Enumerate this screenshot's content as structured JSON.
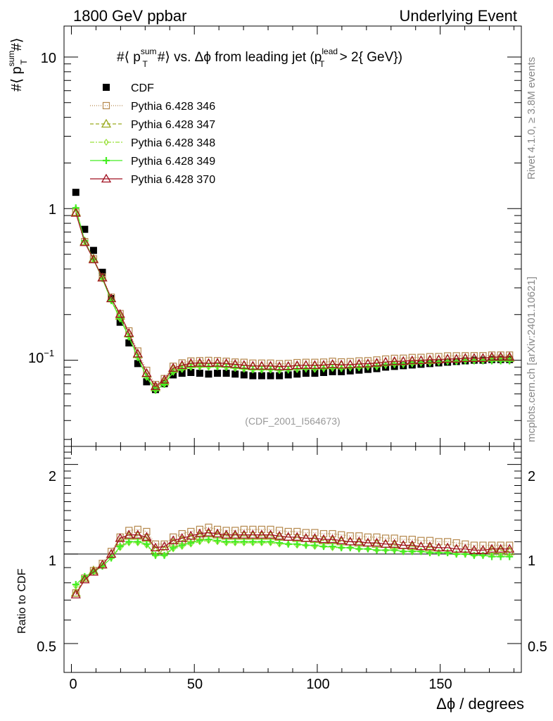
{
  "header": {
    "left": "1800 GeV ppbar",
    "right": "Underlying Event"
  },
  "side": {
    "rivet": "Rivet 4.1.0, ≥ 3.8M events",
    "mcplots": "mcplots.cern.ch [arXiv:2401.10621]"
  },
  "main_plot": {
    "title_prefix": "#⟨ p",
    "title_sup": "sum",
    "title_sub": "T",
    "title_mid": "#⟩ vs. Δϕ from leading jet  (p",
    "title_sup2": "lead",
    "title_sub2": "T",
    "title_suffix": " > 2{ GeV})",
    "ylabel_prefix": "#⟨ p",
    "ylabel_sup": "sum",
    "ylabel_sub": "T",
    "ylabel_suffix": "#⟩",
    "analysis_id": "(CDF_2001_I564673)",
    "y_tick_labels": [
      "10",
      "1",
      "10"
    ],
    "y_tick_exp": "−1"
  },
  "ratio_plot": {
    "ylabel": "Ratio to CDF",
    "tick_labels_left": [
      "2",
      "1",
      "0.5"
    ],
    "tick_labels_right": [
      "2",
      "1",
      "0.5"
    ]
  },
  "x_axis": {
    "label": "Δϕ / degrees",
    "tick_labels": [
      "0",
      "50",
      "100",
      "150"
    ]
  },
  "legend": [
    {
      "name": "CDF"
    },
    {
      "name": "Pythia 6.428 346"
    },
    {
      "name": "Pythia 6.428 347"
    },
    {
      "name": "Pythia 6.428 348"
    },
    {
      "name": "Pythia 6.428 349"
    },
    {
      "name": "Pythia 6.428 370"
    }
  ],
  "chart_data": {
    "type": "scatter",
    "title": "#⟨ p_T^sum #⟩ vs. Δϕ from leading jet (p_T^lead > 2 GeV)",
    "xlabel": "Δϕ / degrees",
    "ylabel": "#⟨ p_T^sum #⟩",
    "xlim": [
      -3,
      183
    ],
    "ylim": [
      0.027,
      16
    ],
    "yscale": "log",
    "ratio_ylim": [
      0.4,
      2.3
    ],
    "x": [
      1.8,
      5.4,
      9,
      12.6,
      16.2,
      19.8,
      23.4,
      27,
      30.6,
      34.2,
      37.8,
      41.4,
      45,
      48.6,
      52.2,
      55.8,
      59.4,
      63,
      66.6,
      70.2,
      73.8,
      77.4,
      81,
      84.6,
      88.2,
      91.8,
      95.4,
      99,
      102.6,
      106.2,
      109.8,
      113.4,
      117,
      120.6,
      124.2,
      127.8,
      131.4,
      135,
      138.6,
      142.2,
      145.8,
      149.4,
      153,
      156.6,
      160.2,
      163.8,
      167.4,
      171,
      174.6,
      178.2
    ],
    "series": [
      {
        "name": "CDF",
        "color": "#000000",
        "values": [
          1.28,
          0.73,
          0.53,
          0.38,
          0.255,
          0.178,
          0.13,
          0.095,
          0.072,
          0.064,
          0.07,
          0.08,
          0.082,
          0.083,
          0.082,
          0.081,
          0.082,
          0.082,
          0.081,
          0.08,
          0.079,
          0.079,
          0.079,
          0.079,
          0.08,
          0.081,
          0.082,
          0.082,
          0.083,
          0.084,
          0.084,
          0.085,
          0.086,
          0.087,
          0.088,
          0.09,
          0.091,
          0.092,
          0.093,
          0.094,
          0.095,
          0.096,
          0.097,
          0.098,
          0.099,
          0.1,
          0.1,
          0.101,
          0.101,
          0.101
        ]
      },
      {
        "name": "Pythia 6.428 346",
        "color": "#b5884c",
        "ratio": [
          0.74,
          0.83,
          0.88,
          0.93,
          1.02,
          1.14,
          1.2,
          1.21,
          1.19,
          1.08,
          1.08,
          1.14,
          1.17,
          1.19,
          1.21,
          1.23,
          1.21,
          1.2,
          1.2,
          1.21,
          1.21,
          1.21,
          1.21,
          1.2,
          1.19,
          1.19,
          1.18,
          1.18,
          1.17,
          1.17,
          1.16,
          1.15,
          1.15,
          1.14,
          1.14,
          1.13,
          1.13,
          1.12,
          1.12,
          1.11,
          1.11,
          1.1,
          1.1,
          1.09,
          1.08,
          1.07,
          1.07,
          1.07,
          1.07,
          1.07
        ]
      },
      {
        "name": "Pythia 6.428 347",
        "color": "#9aaa1e",
        "ratio": [
          0.74,
          0.83,
          0.88,
          0.92,
          1.0,
          1.1,
          1.15,
          1.15,
          1.13,
          1.03,
          1.03,
          1.09,
          1.11,
          1.13,
          1.15,
          1.17,
          1.16,
          1.15,
          1.15,
          1.15,
          1.15,
          1.15,
          1.15,
          1.14,
          1.14,
          1.13,
          1.13,
          1.12,
          1.11,
          1.11,
          1.1,
          1.1,
          1.09,
          1.09,
          1.08,
          1.08,
          1.07,
          1.07,
          1.06,
          1.06,
          1.05,
          1.05,
          1.05,
          1.04,
          1.04,
          1.03,
          1.03,
          1.03,
          1.03,
          1.02
        ]
      },
      {
        "name": "Pythia 6.428 348",
        "color": "#9ae03c",
        "ratio": [
          0.78,
          0.83,
          0.87,
          0.91,
          0.97,
          1.05,
          1.09,
          1.09,
          1.07,
          0.99,
          0.99,
          1.04,
          1.06,
          1.08,
          1.1,
          1.11,
          1.1,
          1.09,
          1.09,
          1.09,
          1.09,
          1.09,
          1.09,
          1.08,
          1.08,
          1.07,
          1.07,
          1.06,
          1.06,
          1.05,
          1.05,
          1.05,
          1.04,
          1.04,
          1.03,
          1.03,
          1.03,
          1.02,
          1.02,
          1.02,
          1.01,
          1.01,
          1.01,
          1.0,
          1.0,
          0.99,
          0.99,
          0.99,
          0.99,
          0.99
        ]
      },
      {
        "name": "Pythia 6.428 349",
        "color": "#44ee22",
        "ratio": [
          0.79,
          0.84,
          0.87,
          0.91,
          0.97,
          1.06,
          1.1,
          1.1,
          1.08,
          0.99,
          0.99,
          1.05,
          1.07,
          1.09,
          1.11,
          1.12,
          1.11,
          1.1,
          1.1,
          1.1,
          1.1,
          1.1,
          1.1,
          1.09,
          1.08,
          1.08,
          1.07,
          1.07,
          1.06,
          1.06,
          1.05,
          1.05,
          1.04,
          1.04,
          1.03,
          1.03,
          1.03,
          1.02,
          1.02,
          1.02,
          1.01,
          1.01,
          1.01,
          1.0,
          1.0,
          0.99,
          0.99,
          0.98,
          0.98,
          0.98
        ]
      },
      {
        "name": "Pythia 6.428 370",
        "color": "#a11020",
        "ratio": [
          0.73,
          0.82,
          0.87,
          0.92,
          1.0,
          1.13,
          1.16,
          1.16,
          1.14,
          1.05,
          1.06,
          1.11,
          1.13,
          1.15,
          1.17,
          1.18,
          1.17,
          1.16,
          1.16,
          1.16,
          1.16,
          1.16,
          1.16,
          1.15,
          1.14,
          1.14,
          1.13,
          1.13,
          1.12,
          1.12,
          1.11,
          1.1,
          1.1,
          1.09,
          1.09,
          1.08,
          1.08,
          1.07,
          1.07,
          1.06,
          1.06,
          1.05,
          1.05,
          1.04,
          1.04,
          1.03,
          1.03,
          1.04,
          1.04,
          1.04
        ]
      }
    ]
  }
}
